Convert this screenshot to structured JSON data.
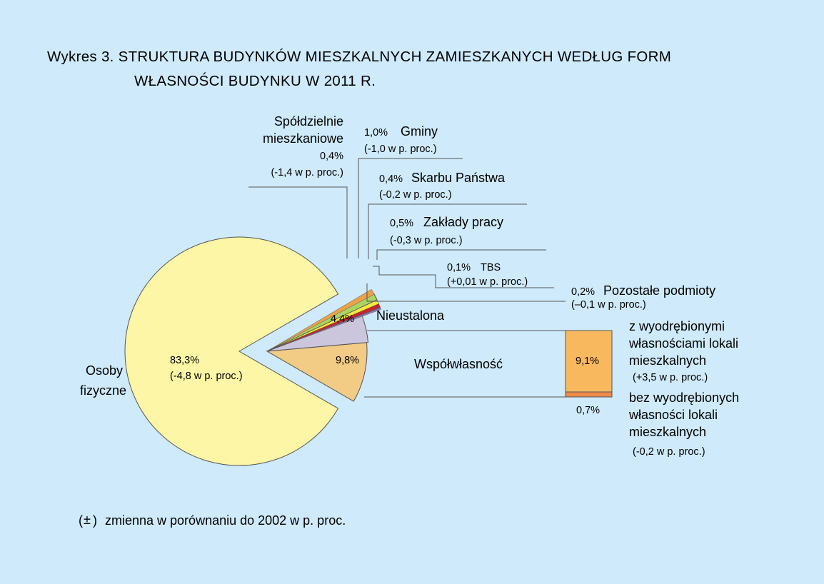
{
  "chart_data": {
    "type": "pie",
    "title_line1": "Wykres 3. STRUKTURA BUDYNKÓW MIESZKALNYCH ZAMIESZKANYCH WEDŁUG FORM",
    "title_line2": "WŁASNOŚCI BUDYNKU W 2011 R.",
    "slices": [
      {
        "key": "osoby",
        "label_lines": [
          "Osoby",
          "fizyczne"
        ],
        "value": 83.3,
        "value_label": "83,3%",
        "change_label": "(-4,8 w p. proc.)",
        "color": "#fdf6a6"
      },
      {
        "key": "wspol",
        "label": "Współwłasność",
        "value": 9.8,
        "value_label": "9,8%",
        "color": "#f2cb85"
      },
      {
        "key": "nieust",
        "label": "Nieustalona",
        "value": 4.4,
        "value_label": "4,4%",
        "color": "#cbc6dc"
      },
      {
        "key": "pozost",
        "label": "Pozostałe podmioty",
        "value": 0.2,
        "value_label": "0,2%",
        "change_label": "(–0,1 w p. proc.)",
        "color": "#9a7fb8"
      },
      {
        "key": "tbs",
        "label": "TBS",
        "value": 0.1,
        "value_label": "0,1%",
        "change_label": "(+0,01 w p. proc.)",
        "color": "#5f6fb0"
      },
      {
        "key": "zaklady",
        "label": "Zakłady pracy",
        "value": 0.5,
        "value_label": "0,5%",
        "change_label": "(-0,3 w p. proc.)",
        "color": "#c9242c"
      },
      {
        "key": "skarb",
        "label": "Skarbu Państwa",
        "value": 0.4,
        "value_label": "0,4%",
        "change_label": "(-0,2 w p. proc.)",
        "color": "#f2ec3a"
      },
      {
        "key": "gminy",
        "label": "Gminy",
        "value": 1.0,
        "value_label": "1,0%",
        "change_label": "(-1,0 w p. proc.)",
        "color": "#a9d464"
      },
      {
        "key": "spold",
        "label_lines": [
          "Spółdzielnie",
          "mieszkaniowe"
        ],
        "value": 0.4,
        "value_label": "0,4%",
        "change_label": "(-1,4 w p. proc.)",
        "color": "#eca14a"
      }
    ],
    "breakdown": {
      "parent": "Współwłasność",
      "parts": [
        {
          "key": "z_wyodr",
          "label_lines": [
            "z wyodrębionymi",
            "własnościami lokali",
            "mieszkalnych"
          ],
          "value": 9.1,
          "value_label": "9,1%",
          "change_label": "(+3,5 w p. proc.)",
          "color": "#f8b95e"
        },
        {
          "key": "bez_wyodr",
          "label_lines": [
            "bez wyodrębionych",
            "własności lokali",
            "mieszkalnych"
          ],
          "value": 0.7,
          "value_label": "0,7%",
          "change_label": "(-0,2 w p. proc.)",
          "color": "#ee8a4a"
        }
      ]
    },
    "footnote_symbol": "±",
    "footnote_text": "zmienna w porównaniu do 2002 w p. proc."
  }
}
